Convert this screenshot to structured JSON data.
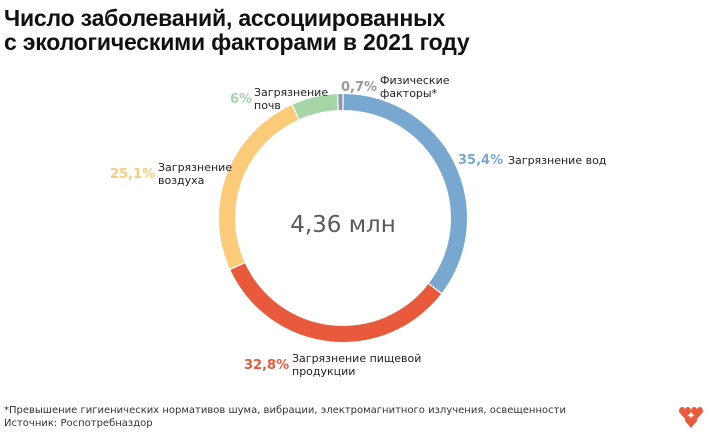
{
  "title_lines": [
    "Число заболеваний, ассоциированных",
    "с экологическими факторами в 2021 году"
  ],
  "footer": {
    "note": "*Превышение гигиенических нормативов шума, вибрации, электромагнитного излучения, освещенности",
    "source": "Источник: Роспотребназдор"
  },
  "chart_data": {
    "type": "pie",
    "variant": "donut",
    "center_label": "4,36 млн",
    "slices": [
      {
        "pct_label": "35,4%",
        "value": 35.4,
        "name_lines": [
          "Загрязнение вод"
        ],
        "color": "#78a8cf"
      },
      {
        "pct_label": "32,8%",
        "value": 32.8,
        "name_lines": [
          "Загрязнение пищевой",
          "продукции"
        ],
        "color": "#e85a3b"
      },
      {
        "pct_label": "25,1%",
        "value": 25.1,
        "name_lines": [
          "Загрязнение",
          "воздуха"
        ],
        "color": "#fccb7a"
      },
      {
        "pct_label": "6%",
        "value": 6.0,
        "name_lines": [
          "Загрязнение",
          "почв"
        ],
        "color": "#a6d5a8"
      },
      {
        "pct_label": "0,7%",
        "value": 0.7,
        "name_lines": [
          "Физические",
          "факторы*"
        ],
        "color": "#8a9aa8"
      }
    ]
  },
  "colors": {
    "pct_small": "#9a9a9a",
    "logo": "#e85a3b"
  }
}
